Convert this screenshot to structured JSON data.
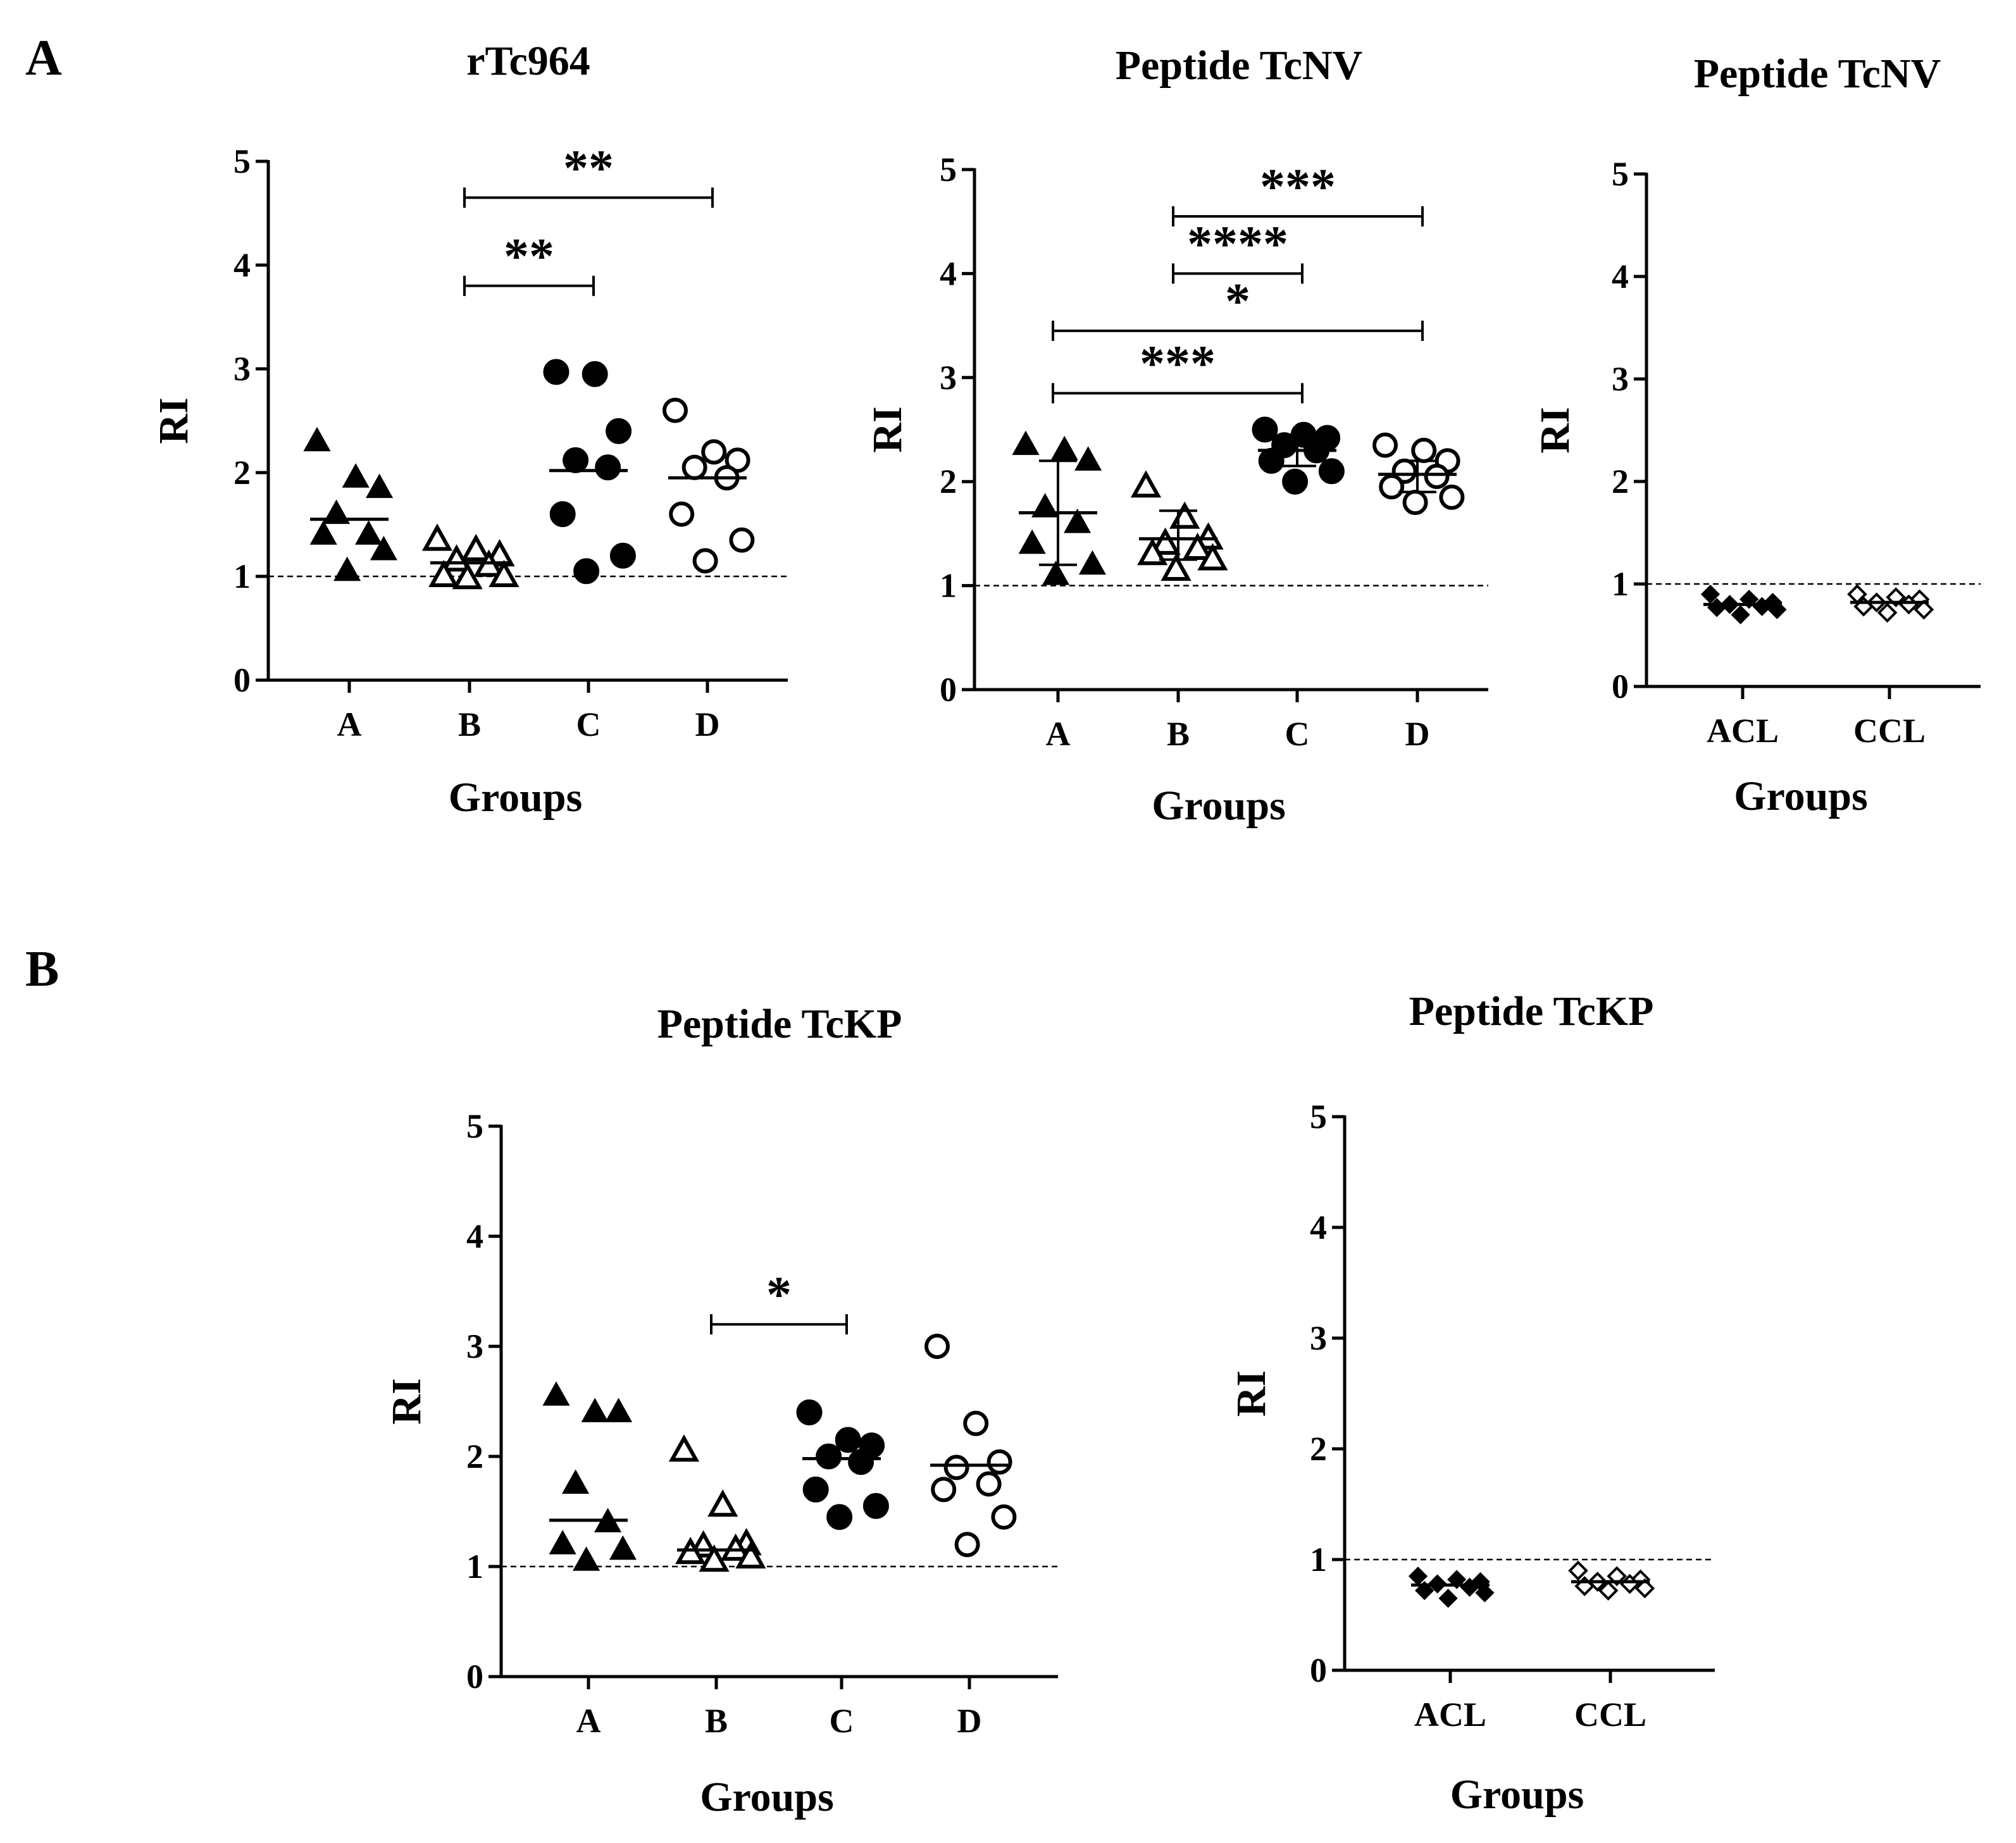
{
  "panels": {
    "A": "A",
    "B": "B"
  },
  "chart_data": [
    {
      "type": "scatter",
      "panel": "A",
      "title": "rTc964",
      "xlabel": "Groups",
      "ylabel": "RI",
      "ylim": [
        0,
        5
      ],
      "yticks": [
        "0",
        "1",
        "2",
        "3",
        "4",
        "5"
      ],
      "cutoff": 1,
      "categories": [
        "A",
        "B",
        "C",
        "D"
      ],
      "series": [
        {
          "name": "A",
          "marker": "triangle-filled",
          "values": [
            2.3,
            1.95,
            1.85,
            1.6,
            1.4,
            1.4,
            1.25,
            1.05
          ],
          "center": 1.55
        },
        {
          "name": "B",
          "marker": "triangle-open",
          "values": [
            1.35,
            1.25,
            1.2,
            1.15,
            1.1,
            1.0,
            1.0,
            0.98
          ],
          "center": 1.13
        },
        {
          "name": "C",
          "marker": "circle-filled",
          "values": [
            2.97,
            2.95,
            2.4,
            2.12,
            2.05,
            1.6,
            1.2,
            1.05
          ],
          "center": 2.02
        },
        {
          "name": "D",
          "marker": "circle-open",
          "values": [
            2.6,
            2.2,
            2.12,
            2.05,
            1.95,
            1.6,
            1.35,
            1.15
          ],
          "center": 1.95
        }
      ],
      "comparisons": [
        {
          "from": "B",
          "to": "C",
          "label": "**",
          "y": 3.8
        },
        {
          "from": "B",
          "to": "D",
          "label": "**",
          "y": 4.65
        }
      ]
    },
    {
      "type": "scatter",
      "panel": "A",
      "title": "Peptide TcNV",
      "xlabel": "Groups",
      "ylabel": "RI",
      "ylim": [
        0,
        5
      ],
      "yticks": [
        "0",
        "1",
        "2",
        "3",
        "4",
        "5"
      ],
      "cutoff": 1,
      "categories": [
        "A",
        "B",
        "C",
        "D"
      ],
      "series": [
        {
          "name": "A",
          "marker": "triangle-filled",
          "values": [
            2.35,
            2.3,
            2.2,
            1.75,
            1.6,
            1.4,
            1.2,
            1.1
          ],
          "center": 1.7,
          "err": [
            1.2,
            2.2
          ]
        },
        {
          "name": "B",
          "marker": "triangle-open",
          "values": [
            1.95,
            1.65,
            1.45,
            1.4,
            1.35,
            1.3,
            1.25,
            1.15
          ],
          "center": 1.45,
          "err": [
            1.25,
            1.72
          ]
        },
        {
          "name": "C",
          "marker": "circle-filled",
          "values": [
            2.5,
            2.45,
            2.42,
            2.35,
            2.3,
            2.2,
            2.1,
            2.0
          ],
          "center": 2.3,
          "err": [
            2.15,
            2.45
          ]
        },
        {
          "name": "D",
          "marker": "circle-open",
          "values": [
            2.35,
            2.3,
            2.2,
            2.1,
            2.05,
            1.95,
            1.85,
            1.8
          ],
          "center": 2.07,
          "err": [
            1.9,
            2.2
          ]
        }
      ],
      "comparisons": [
        {
          "from": "A",
          "to": "C",
          "label": "***",
          "y": 2.85
        },
        {
          "from": "A",
          "to": "D",
          "label": "*",
          "y": 3.45
        },
        {
          "from": "B",
          "to": "C",
          "label": "****",
          "y": 4.0
        },
        {
          "from": "B",
          "to": "D",
          "label": "***",
          "y": 4.55
        }
      ]
    },
    {
      "type": "scatter",
      "panel": "A",
      "title": "Peptide TcNV",
      "xlabel": "Groups",
      "ylabel": "RI",
      "ylim": [
        0,
        5
      ],
      "yticks": [
        "0",
        "1",
        "2",
        "3",
        "4",
        "5"
      ],
      "cutoff": 1,
      "categories": [
        "ACL",
        "CCL"
      ],
      "series": [
        {
          "name": "ACL",
          "marker": "diamond-filled",
          "values": [
            0.9,
            0.85,
            0.82,
            0.8,
            0.78,
            0.77,
            0.75,
            0.7
          ],
          "center": 0.8
        },
        {
          "name": "CCL",
          "marker": "diamond-open",
          "values": [
            0.9,
            0.87,
            0.85,
            0.82,
            0.8,
            0.78,
            0.75,
            0.72
          ],
          "center": 0.82
        }
      ],
      "comparisons": []
    },
    {
      "type": "scatter",
      "panel": "B",
      "title": "Peptide TcKP",
      "xlabel": "Groups",
      "ylabel": "RI",
      "ylim": [
        0,
        5
      ],
      "yticks": [
        "0",
        "1",
        "2",
        "3",
        "4",
        "5"
      ],
      "cutoff": 1,
      "categories": [
        "A",
        "B",
        "C",
        "D"
      ],
      "series": [
        {
          "name": "A",
          "marker": "triangle-filled",
          "values": [
            2.55,
            2.4,
            2.4,
            1.75,
            1.4,
            1.2,
            1.15,
            1.05
          ],
          "center": 1.42
        },
        {
          "name": "B",
          "marker": "triangle-open",
          "values": [
            2.05,
            1.55,
            1.2,
            1.18,
            1.15,
            1.12,
            1.08,
            1.05
          ],
          "center": 1.15
        },
        {
          "name": "C",
          "marker": "circle-filled",
          "values": [
            2.4,
            2.15,
            2.1,
            2.0,
            1.95,
            1.7,
            1.55,
            1.45
          ],
          "center": 1.98
        },
        {
          "name": "D",
          "marker": "circle-open",
          "values": [
            3.0,
            2.3,
            1.95,
            1.9,
            1.75,
            1.7,
            1.45,
            1.2
          ],
          "center": 1.92
        }
      ],
      "comparisons": [
        {
          "from": "B",
          "to": "C",
          "label": "*",
          "y": 3.2
        }
      ]
    },
    {
      "type": "scatter",
      "panel": "B",
      "title": "Peptide TcKP",
      "xlabel": "Groups",
      "ylabel": "RI",
      "ylim": [
        0,
        5
      ],
      "yticks": [
        "0",
        "1",
        "2",
        "3",
        "4",
        "5"
      ],
      "cutoff": 1,
      "categories": [
        "ACL",
        "CCL"
      ],
      "series": [
        {
          "name": "ACL",
          "marker": "diamond-filled",
          "values": [
            0.85,
            0.82,
            0.8,
            0.78,
            0.75,
            0.72,
            0.7,
            0.65
          ],
          "center": 0.77
        },
        {
          "name": "CCL",
          "marker": "diamond-open",
          "values": [
            0.9,
            0.85,
            0.82,
            0.8,
            0.78,
            0.76,
            0.74,
            0.72
          ],
          "center": 0.8
        }
      ],
      "comparisons": []
    }
  ]
}
